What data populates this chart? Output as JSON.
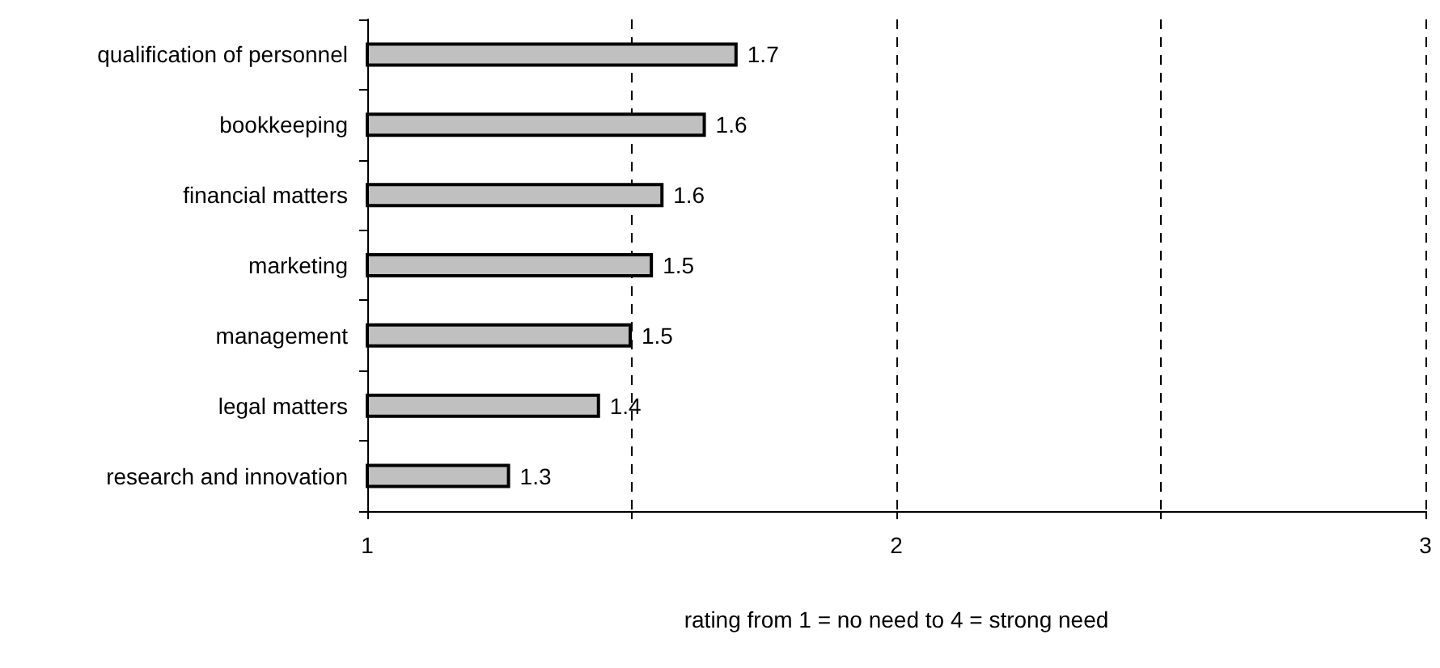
{
  "chart_data": {
    "type": "bar",
    "orientation": "horizontal",
    "categories": [
      "qualification of personnel",
      "bookkeeping",
      "financial matters",
      "marketing",
      "management",
      "legal matters",
      "research and innovation"
    ],
    "values": [
      1.7,
      1.64,
      1.56,
      1.54,
      1.5,
      1.44,
      1.27
    ],
    "value_labels": [
      "1.7",
      "1.6",
      "1.6",
      "1.5",
      "1.5",
      "1.4",
      "1.3"
    ],
    "color": "#c0c0c0",
    "xlim": [
      1,
      3
    ],
    "xticks": [
      1,
      {
        "value": 1.5,
        "label": null
      },
      2,
      {
        "value": 2.5,
        "label": null
      },
      3
    ],
    "xlabel": "rating from 1 = no need to 4 = strong need",
    "grid": "x"
  }
}
